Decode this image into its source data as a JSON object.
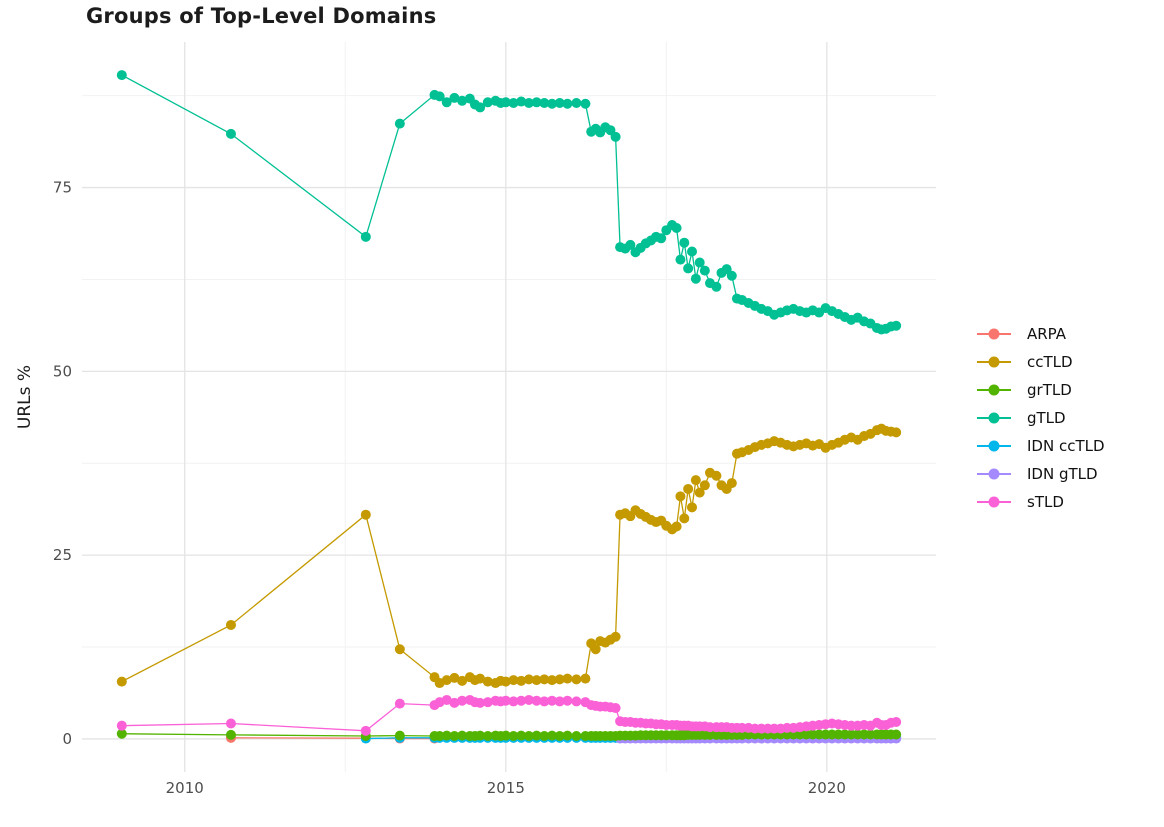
{
  "chart_data": {
    "type": "line",
    "title": "Groups of Top-Level Domains",
    "xlabel": "",
    "ylabel": "URLs %",
    "x_ticks": [
      2010,
      2015,
      2020
    ],
    "y_ticks": [
      0,
      25,
      50,
      75
    ],
    "x_minor_ticks": [
      2012.5,
      2017.5
    ],
    "y_minor_ticks": [
      12.5,
      37.5,
      62.5,
      87.5
    ],
    "xlim": [
      2008.4,
      2021.7
    ],
    "ylim": [
      -4.5,
      94.8
    ],
    "grid": true,
    "legend_position": "right",
    "x": [
      2009.02,
      2010.72,
      2012.82,
      2013.35,
      2013.89,
      2013.97,
      2014.08,
      2014.2,
      2014.32,
      2014.44,
      2014.52,
      2014.6,
      2014.72,
      2014.84,
      2014.92,
      2015.0,
      2015.12,
      2015.24,
      2015.36,
      2015.48,
      2015.6,
      2015.72,
      2015.84,
      2015.96,
      2016.1,
      2016.24,
      2016.33,
      2016.4,
      2016.47,
      2016.55,
      2016.63,
      2016.71,
      2016.78,
      2016.86,
      2016.94,
      2017.02,
      2017.1,
      2017.18,
      2017.26,
      2017.34,
      2017.42,
      2017.5,
      2017.59,
      2017.66,
      2017.72,
      2017.78,
      2017.84,
      2017.9,
      2017.96,
      2018.02,
      2018.1,
      2018.18,
      2018.28,
      2018.36,
      2018.44,
      2018.52,
      2018.6,
      2018.68,
      2018.78,
      2018.88,
      2018.98,
      2019.08,
      2019.18,
      2019.28,
      2019.38,
      2019.48,
      2019.58,
      2019.68,
      2019.78,
      2019.88,
      2019.98,
      2020.08,
      2020.18,
      2020.28,
      2020.38,
      2020.48,
      2020.58,
      2020.68,
      2020.78,
      2020.85,
      2020.92,
      2021.0,
      2021.08
    ],
    "series": [
      {
        "name": "ARPA",
        "color": "#F8766D",
        "y": [
          null,
          0.15,
          0.1,
          0.05,
          0.05,
          null,
          null,
          null,
          null,
          null,
          null,
          null,
          null,
          null,
          null,
          null,
          null,
          null,
          null,
          null,
          null,
          null,
          null,
          null,
          null,
          null,
          null,
          null,
          null,
          null,
          null,
          null,
          null,
          null,
          null,
          null,
          null,
          null,
          null,
          null,
          null,
          null,
          null,
          null,
          null,
          null,
          null,
          null,
          null,
          null,
          null,
          null,
          null,
          null,
          null,
          null,
          null,
          null,
          null,
          null,
          null,
          null,
          null,
          null,
          null,
          null,
          null,
          null,
          null,
          null,
          null,
          null,
          null,
          null,
          null,
          null,
          null,
          null,
          null,
          null,
          null,
          null,
          null
        ]
      },
      {
        "name": "ccTLD",
        "color": "#C49A00",
        "y": [
          7.8,
          15.5,
          30.5,
          12.2,
          8.4,
          7.6,
          8.0,
          8.3,
          7.9,
          8.4,
          8.0,
          8.2,
          7.8,
          7.6,
          7.9,
          7.8,
          8.0,
          7.9,
          8.1,
          8.0,
          8.1,
          8.0,
          8.1,
          8.2,
          8.1,
          8.2,
          13.0,
          12.2,
          13.3,
          13.1,
          13.5,
          13.9,
          30.5,
          30.7,
          30.3,
          31.1,
          30.6,
          30.2,
          29.8,
          29.5,
          29.7,
          29.0,
          28.5,
          28.9,
          33.0,
          30.0,
          34.0,
          31.5,
          35.2,
          33.5,
          34.5,
          36.2,
          35.8,
          34.5,
          34.0,
          34.8,
          38.8,
          39.0,
          39.3,
          39.7,
          40.0,
          40.2,
          40.5,
          40.3,
          40.0,
          39.8,
          40.0,
          40.2,
          39.9,
          40.1,
          39.6,
          40.0,
          40.3,
          40.7,
          41.0,
          40.7,
          41.2,
          41.5,
          42.0,
          42.2,
          41.9,
          41.8,
          41.7
        ]
      },
      {
        "name": "grTLD",
        "color": "#53B400",
        "y": [
          0.7,
          0.55,
          0.4,
          0.45,
          0.4,
          0.4,
          0.45,
          0.4,
          0.45,
          0.4,
          0.4,
          0.45,
          0.4,
          0.45,
          0.4,
          0.45,
          0.4,
          0.45,
          0.4,
          0.45,
          0.4,
          0.45,
          0.4,
          0.45,
          0.4,
          0.4,
          0.4,
          0.4,
          0.4,
          0.4,
          0.4,
          0.4,
          0.45,
          0.45,
          0.45,
          0.45,
          0.5,
          0.5,
          0.5,
          0.5,
          0.5,
          0.5,
          0.5,
          0.5,
          0.5,
          0.5,
          0.55,
          0.55,
          0.55,
          0.55,
          0.55,
          0.55,
          0.55,
          0.55,
          0.55,
          0.55,
          0.55,
          0.55,
          0.6,
          0.6,
          0.6,
          0.6,
          0.6,
          0.6,
          0.6,
          0.6,
          0.6,
          0.6,
          0.6,
          0.6,
          0.6,
          0.6,
          0.6,
          0.6,
          0.6,
          0.6,
          0.6,
          0.6,
          0.6,
          0.6,
          0.6,
          0.6,
          0.6
        ]
      },
      {
        "name": "gTLD",
        "color": "#00C094",
        "y": [
          90.3,
          82.3,
          68.3,
          83.7,
          87.6,
          87.4,
          86.6,
          87.2,
          86.8,
          87.1,
          86.3,
          85.9,
          86.6,
          86.8,
          86.5,
          86.6,
          86.5,
          86.7,
          86.5,
          86.6,
          86.5,
          86.4,
          86.5,
          86.4,
          86.5,
          86.4,
          82.6,
          83.0,
          82.5,
          83.2,
          82.8,
          81.9,
          66.9,
          66.7,
          67.2,
          66.2,
          66.8,
          67.4,
          67.8,
          68.3,
          68.1,
          69.2,
          69.9,
          69.5,
          65.2,
          67.5,
          64.0,
          66.3,
          62.6,
          64.8,
          63.7,
          62.0,
          61.5,
          63.4,
          63.9,
          63.0,
          59.9,
          59.7,
          59.3,
          58.9,
          58.5,
          58.2,
          57.7,
          58.0,
          58.3,
          58.5,
          58.2,
          58.0,
          58.3,
          58.0,
          58.6,
          58.2,
          57.8,
          57.4,
          57.0,
          57.3,
          56.8,
          56.5,
          55.9,
          55.7,
          55.8,
          56.1,
          56.2
        ]
      },
      {
        "name": "IDN ccTLD",
        "color": "#00B6EB",
        "y": [
          null,
          null,
          0.05,
          0.15,
          0.15,
          0.15,
          0.15,
          0.15,
          0.15,
          0.15,
          0.15,
          0.15,
          0.15,
          0.15,
          0.15,
          0.15,
          0.15,
          0.15,
          0.15,
          0.15,
          0.15,
          0.15,
          0.15,
          0.15,
          0.15,
          0.15,
          0.15,
          0.15,
          0.15,
          0.15,
          0.15,
          0.15,
          0.15,
          0.15,
          0.15,
          0.15,
          0.15,
          0.15,
          0.15,
          0.15,
          0.15,
          0.15,
          0.15,
          0.15,
          0.15,
          0.15,
          0.15,
          0.15,
          0.15,
          0.15,
          0.15,
          0.15,
          0.15,
          0.15,
          0.15,
          0.15,
          0.15,
          0.15,
          0.15,
          0.15,
          0.15,
          0.15,
          0.15,
          0.15,
          0.15,
          0.15,
          0.15,
          0.15,
          0.15,
          0.15,
          0.15,
          0.15,
          0.15,
          0.15,
          0.15,
          0.15,
          0.15,
          0.15,
          0.15,
          0.15,
          0.15,
          0.15,
          0.15
        ]
      },
      {
        "name": "IDN gTLD",
        "color": "#A58AFF",
        "y": [
          null,
          null,
          null,
          null,
          null,
          null,
          null,
          null,
          null,
          null,
          null,
          null,
          null,
          null,
          null,
          null,
          null,
          null,
          null,
          null,
          null,
          null,
          null,
          null,
          null,
          null,
          null,
          null,
          null,
          null,
          null,
          null,
          0.05,
          0.05,
          0.05,
          0.05,
          0.05,
          0.05,
          0.05,
          0.05,
          0.05,
          0.05,
          0.05,
          0.05,
          0.05,
          0.05,
          0.05,
          0.05,
          0.05,
          0.05,
          0.05,
          0.05,
          0.05,
          0.05,
          0.05,
          0.05,
          0.05,
          0.05,
          0.05,
          0.05,
          0.05,
          0.05,
          0.05,
          0.05,
          0.05,
          0.05,
          0.05,
          0.05,
          0.05,
          0.05,
          0.05,
          0.05,
          0.05,
          0.05,
          0.05,
          0.05,
          0.05,
          0.05,
          0.05,
          0.05,
          0.05,
          0.05,
          0.05
        ]
      },
      {
        "name": "sTLD",
        "color": "#FB61D7",
        "y": [
          1.8,
          2.1,
          1.1,
          4.8,
          4.6,
          5.0,
          5.3,
          4.9,
          5.2,
          5.3,
          5.0,
          4.9,
          5.0,
          5.2,
          5.1,
          5.2,
          5.1,
          5.2,
          5.3,
          5.2,
          5.1,
          5.2,
          5.1,
          5.2,
          5.1,
          5.0,
          4.6,
          4.5,
          4.4,
          4.4,
          4.3,
          4.2,
          2.4,
          2.3,
          2.3,
          2.2,
          2.2,
          2.1,
          2.1,
          2.0,
          2.0,
          1.9,
          1.9,
          1.9,
          1.8,
          1.8,
          1.8,
          1.7,
          1.7,
          1.7,
          1.7,
          1.6,
          1.6,
          1.6,
          1.6,
          1.5,
          1.5,
          1.5,
          1.5,
          1.4,
          1.4,
          1.4,
          1.4,
          1.4,
          1.5,
          1.5,
          1.6,
          1.7,
          1.8,
          1.9,
          2.0,
          2.1,
          2.0,
          1.9,
          1.8,
          1.8,
          1.9,
          1.8,
          2.2,
          1.9,
          1.9,
          2.2,
          2.3
        ]
      }
    ]
  },
  "colors": {
    "background": "#ffffff",
    "grid_major": "#e4e4e4",
    "grid_minor": "#f2f2f2",
    "tick_label": "#4d4d4d",
    "text": "#1c1c1c"
  }
}
